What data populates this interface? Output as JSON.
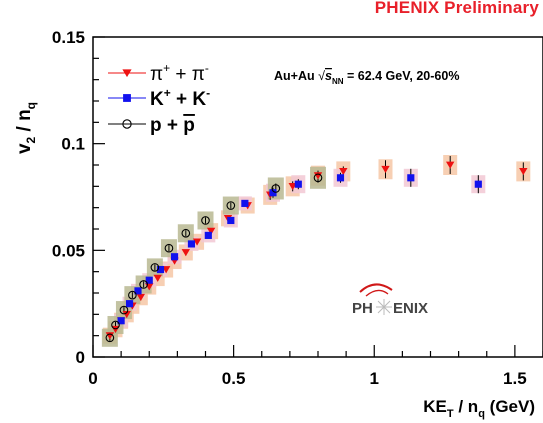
{
  "banner": "PHENIX Preliminary",
  "chart_data": {
    "type": "scatter",
    "xlabel": "KE_T / n_q (GeV)",
    "ylabel": "v_2 / n_q",
    "xlim": [
      0,
      1.6
    ],
    "ylim": [
      0,
      0.15
    ],
    "x_ticks": [
      "0",
      "0.5",
      "1",
      "1.5"
    ],
    "y_ticks": [
      "0",
      "0.05",
      "0.1",
      "0.15"
    ],
    "annotation": "Au+Au √s_NN = 62.4 GeV, 20-60%",
    "logo_text": "PHENIX",
    "legend_position": "top-left",
    "colors": {
      "pions": "#ee1111",
      "kaons": "#1111ee",
      "protons": "#000000"
    },
    "series": [
      {
        "name": "π+ + π-",
        "marker": "triangle-down",
        "sys_color": "#f6c7a6",
        "x": [
          0.06,
          0.08,
          0.1,
          0.12,
          0.14,
          0.17,
          0.2,
          0.23,
          0.26,
          0.29,
          0.33,
          0.37,
          0.42,
          0.48,
          0.55,
          0.63,
          0.71,
          0.8,
          0.89,
          1.04,
          1.27,
          1.53
        ],
        "y": [
          0.01,
          0.013,
          0.017,
          0.02,
          0.024,
          0.028,
          0.033,
          0.037,
          0.041,
          0.045,
          0.049,
          0.054,
          0.059,
          0.065,
          0.071,
          0.076,
          0.08,
          0.085,
          0.087,
          0.088,
          0.09,
          0.087
        ]
      },
      {
        "name": "K+ + K-",
        "marker": "square",
        "sys_color": "#f2c8d4",
        "x": [
          0.1,
          0.13,
          0.16,
          0.2,
          0.24,
          0.29,
          0.35,
          0.41,
          0.49,
          0.54,
          0.64,
          0.73,
          0.88,
          1.13,
          1.37
        ],
        "y": [
          0.017,
          0.025,
          0.031,
          0.036,
          0.041,
          0.047,
          0.053,
          0.057,
          0.064,
          0.072,
          0.077,
          0.081,
          0.084,
          0.084,
          0.081
        ]
      },
      {
        "name": "p + p̄",
        "marker": "circle-open",
        "sys_color": "#b9b892",
        "x": [
          0.06,
          0.08,
          0.11,
          0.14,
          0.18,
          0.22,
          0.27,
          0.33,
          0.4,
          0.49,
          0.65,
          0.8
        ],
        "y": [
          0.009,
          0.015,
          0.022,
          0.029,
          0.034,
          0.042,
          0.051,
          0.058,
          0.064,
          0.071,
          0.079,
          0.084
        ]
      }
    ]
  }
}
